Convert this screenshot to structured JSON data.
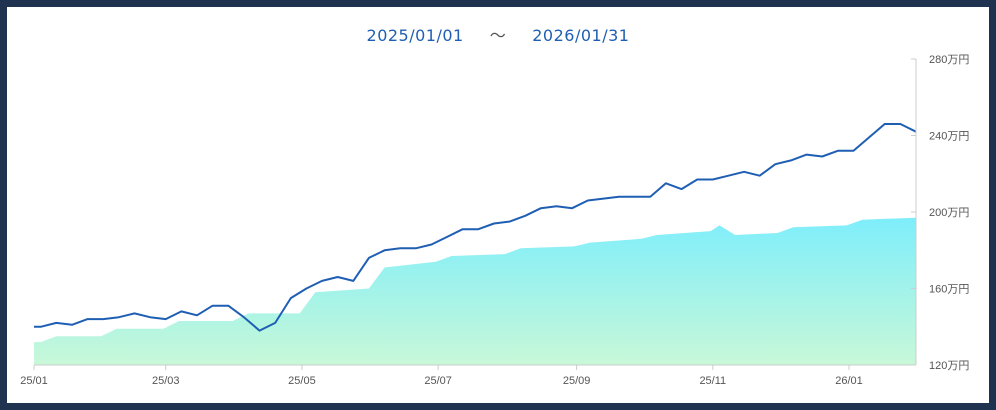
{
  "header": {
    "start_date": "2025/01/01",
    "separator": "～",
    "end_date": "2026/01/31"
  },
  "chart_data": {
    "type": "area",
    "x_start": "2025-01-01",
    "x_end": "2026-01-31",
    "ylim": [
      120,
      280
    ],
    "y_ticks": [
      120,
      160,
      200,
      240,
      280
    ],
    "y_tick_labels": [
      "120万円",
      "160万円",
      "200万円",
      "240万円",
      "280万円"
    ],
    "x_tick_dates": [
      "2025-01-01",
      "2025-03-01",
      "2025-05-01",
      "2025-07-01",
      "2025-09-01",
      "2025-11-01",
      "2026-01-01"
    ],
    "x_tick_labels": [
      "25/01",
      "25/03",
      "25/05",
      "25/07",
      "25/09",
      "25/11",
      "26/01"
    ],
    "colors": {
      "line": "#1f5fb3",
      "area_top": "#7eeefb",
      "area_bottom": "#c8f8d8",
      "axis": "#cccccc"
    },
    "series": [
      {
        "type": "line",
        "x": [
          "2025-01-01",
          "2025-01-04",
          "2025-01-11",
          "2025-01-18",
          "2025-01-25",
          "2025-02-01",
          "2025-02-08",
          "2025-02-15",
          "2025-02-22",
          "2025-03-01",
          "2025-03-08",
          "2025-03-15",
          "2025-03-22",
          "2025-03-29",
          "2025-04-05",
          "2025-04-12",
          "2025-04-19",
          "2025-04-26",
          "2025-05-03",
          "2025-05-10",
          "2025-05-17",
          "2025-05-24",
          "2025-05-31",
          "2025-06-07",
          "2025-06-14",
          "2025-06-21",
          "2025-06-28",
          "2025-07-05",
          "2025-07-12",
          "2025-07-19",
          "2025-07-26",
          "2025-08-02",
          "2025-08-09",
          "2025-08-16",
          "2025-08-23",
          "2025-08-30",
          "2025-09-06",
          "2025-09-13",
          "2025-09-20",
          "2025-09-27",
          "2025-10-04",
          "2025-10-11",
          "2025-10-18",
          "2025-10-25",
          "2025-11-01",
          "2025-11-08",
          "2025-11-15",
          "2025-11-22",
          "2025-11-29",
          "2025-12-06",
          "2025-12-13",
          "2025-12-20",
          "2025-12-27",
          "2026-01-03",
          "2026-01-10",
          "2026-01-17",
          "2026-01-24",
          "2026-01-31"
        ],
        "values": [
          140,
          140,
          142,
          141,
          144,
          144,
          145,
          147,
          145,
          144,
          148,
          146,
          151,
          151,
          145,
          138,
          142,
          155,
          160,
          164,
          166,
          164,
          176,
          180,
          181,
          181,
          183,
          187,
          191,
          191,
          194,
          195,
          198,
          202,
          203,
          202,
          206,
          207,
          208,
          208,
          208,
          215,
          212,
          217,
          217,
          219,
          221,
          219,
          225,
          227,
          230,
          229,
          232,
          232,
          239,
          246,
          246,
          242
        ]
      },
      {
        "type": "area",
        "x": [
          "2025-01-01",
          "2025-01-04",
          "2025-01-11",
          "2025-01-31",
          "2025-02-07",
          "2025-02-28",
          "2025-03-07",
          "2025-03-31",
          "2025-04-07",
          "2025-04-30",
          "2025-05-07",
          "2025-05-31",
          "2025-06-07",
          "2025-06-30",
          "2025-07-07",
          "2025-07-31",
          "2025-08-07",
          "2025-08-31",
          "2025-09-07",
          "2025-09-30",
          "2025-10-07",
          "2025-10-31",
          "2025-11-04",
          "2025-11-11",
          "2025-11-30",
          "2025-12-07",
          "2025-12-31",
          "2026-01-07",
          "2026-01-31"
        ],
        "values": [
          132,
          132,
          135,
          135,
          139,
          139,
          143,
          143,
          147,
          147,
          158,
          160,
          171,
          174,
          177,
          178,
          181,
          182,
          184,
          186,
          188,
          190,
          193,
          188,
          189,
          192,
          193,
          196,
          197
        ]
      }
    ]
  }
}
